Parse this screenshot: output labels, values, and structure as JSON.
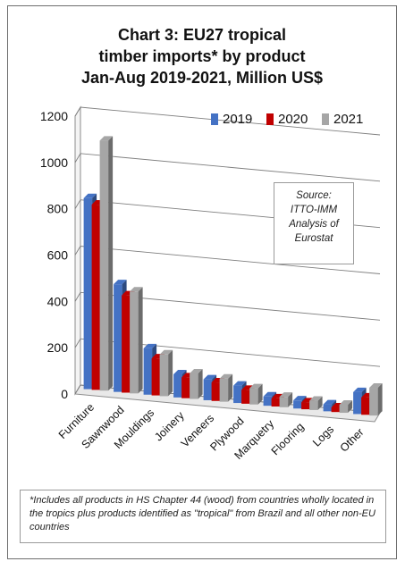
{
  "chart_data": {
    "type": "bar",
    "title_lines": [
      "Chart 3: EU27 tropical",
      "timber imports* by product",
      "Jan-Aug 2019-2021, Million US$"
    ],
    "categories": [
      "Furniture",
      "Sawnwood",
      "Mouldings",
      "Joinery",
      "Veneers",
      "Plywood",
      "Marquetry",
      "Flooring",
      "Logs",
      "Other"
    ],
    "series": [
      {
        "name": "2019",
        "values": [
          825,
          465,
          200,
          100,
          90,
          75,
          40,
          35,
          30,
          95
        ]
      },
      {
        "name": "2020",
        "values": [
          800,
          420,
          160,
          90,
          80,
          60,
          35,
          30,
          20,
          75
        ]
      },
      {
        "name": "2021",
        "values": [
          1080,
          440,
          180,
          110,
          100,
          70,
          45,
          40,
          35,
          120
        ]
      }
    ],
    "yticks": [
      "0",
      "200",
      "400",
      "600",
      "800",
      "1000",
      "1200"
    ],
    "ylim": [
      0,
      1200
    ],
    "grid": true,
    "legend_position": "top-right",
    "series_colors": {
      "2019": "#4472c4",
      "2020": "#c00000",
      "2021": "#a6a6a6"
    },
    "annotation": [
      "Source:",
      "ITTO-IMM",
      "Analysis of",
      "Eurostat"
    ],
    "footnote": "*Includes all products in HS Chapter 44 (wood) from countries wholly located in the tropics plus products identified as \"tropical\" from Brazil and all other non-EU countries"
  }
}
